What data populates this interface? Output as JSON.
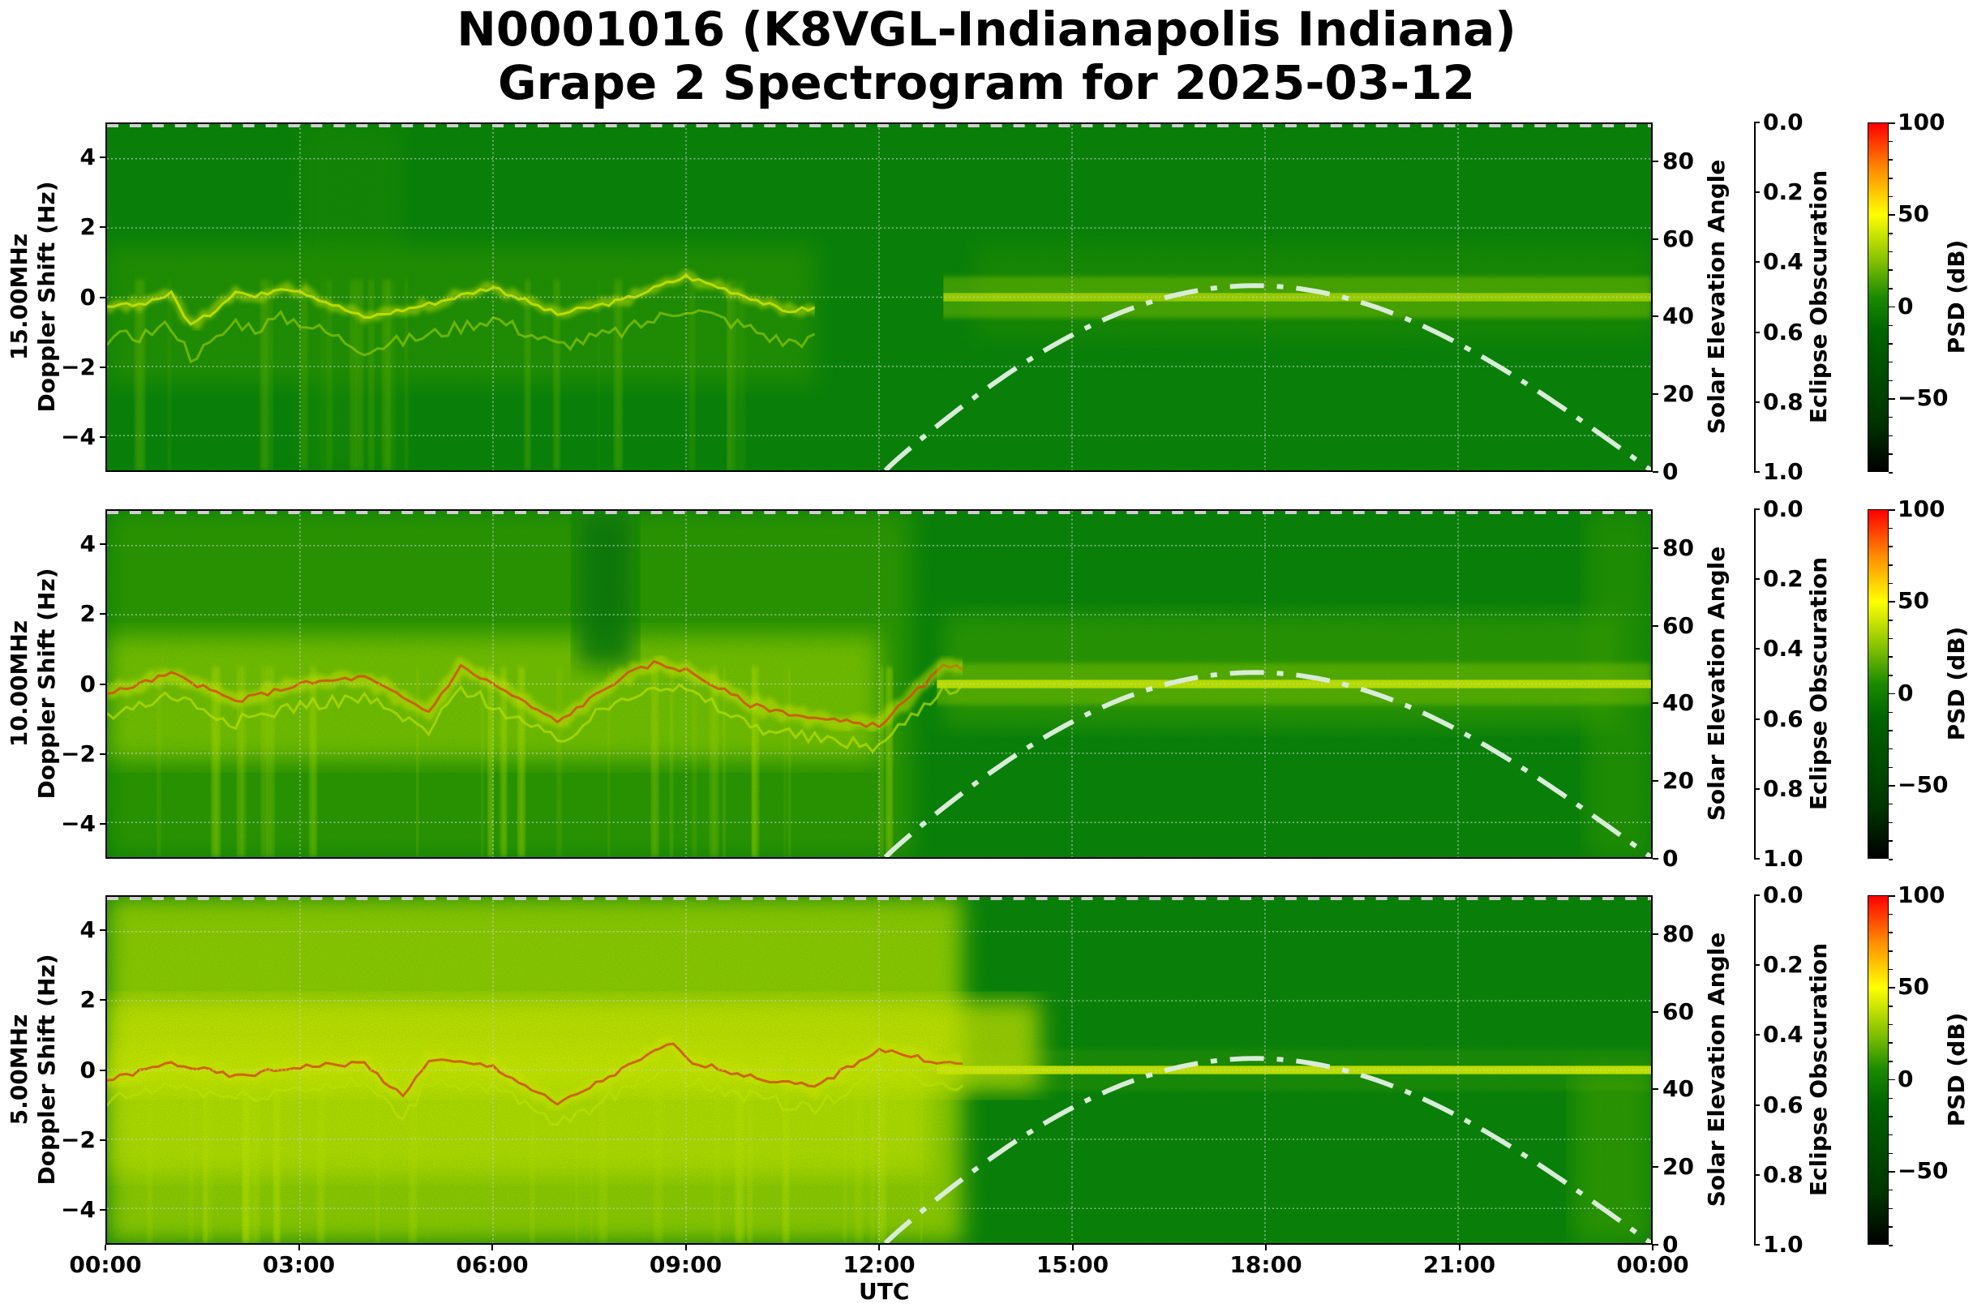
{
  "title": {
    "line1": "N0001016 (K8VGL-Indianapolis Indiana)",
    "line2": "Grape 2 Spectrogram for 2025-03-12"
  },
  "axes": {
    "x_label": "UTC",
    "x_ticks": [
      "00:00",
      "03:00",
      "06:00",
      "09:00",
      "12:00",
      "15:00",
      "18:00",
      "21:00",
      "00:00"
    ],
    "doppler_ticks": [
      "4",
      "2",
      "0",
      "−2",
      "−4"
    ],
    "solar_ticks": [
      "80",
      "60",
      "40",
      "20",
      "0"
    ],
    "solar_label": "Solar Elevation Angle",
    "eclipse_ticks": [
      "0.0",
      "0.2",
      "0.4",
      "0.6",
      "0.8",
      "1.0"
    ],
    "eclipse_label": "Eclipse Obscuration",
    "cbar_ticks": [
      "100",
      "50",
      "0",
      "−50"
    ],
    "cbar_label": "PSD (dB)"
  },
  "panels": [
    {
      "freq_label": "15.00MHz",
      "ylabel": "Doppler Shift (Hz)"
    },
    {
      "freq_label": "10.00MHz",
      "ylabel": "Doppler Shift (Hz)"
    },
    {
      "freq_label": "5.00MHz",
      "ylabel": "Doppler Shift (Hz)"
    }
  ],
  "colors": {
    "background_green": "#0b7a0b",
    "signal_yellow": "#e6f000",
    "signal_red": "#ff4000",
    "solar_curve": "#d8ecd8",
    "cbar_low": "#000000",
    "cbar_mid": "#008000",
    "cbar_50": "#ffff00",
    "cbar_high": "#ff0000"
  },
  "chart_data": {
    "type": "heatmap",
    "title": "N0001016 (K8VGL-Indianapolis Indiana) Grape 2 Spectrogram for 2025-03-12",
    "xlabel": "UTC",
    "x_range_hours": [
      0,
      24
    ],
    "x_ticks": [
      "00:00",
      "03:00",
      "06:00",
      "09:00",
      "12:00",
      "15:00",
      "18:00",
      "21:00",
      "00:00"
    ],
    "grid": true,
    "colorbar": {
      "label": "PSD (dB)",
      "range": [
        -90,
        100
      ],
      "ticks": [
        100,
        50,
        0,
        -50
      ],
      "colormap": "black-green-yellow-red"
    },
    "secondary_axes": {
      "solar_elevation": {
        "label": "Solar Elevation Angle",
        "range": [
          0,
          90
        ],
        "ticks": [
          0,
          20,
          40,
          60,
          80
        ]
      },
      "eclipse_obscuration": {
        "label": "Eclipse Obscuration",
        "range": [
          1.0,
          0.0
        ],
        "ticks": [
          0.0,
          0.2,
          0.4,
          0.6,
          0.8,
          1.0
        ],
        "value": 0.0
      }
    },
    "solar_elevation_curve": {
      "style": "dash-dot, light green-white",
      "x_hours": [
        12.1,
        13,
        14,
        15,
        16,
        17,
        18,
        19,
        20,
        21,
        22,
        23,
        24
      ],
      "y_deg": [
        0,
        9,
        19,
        28,
        37,
        44,
        48,
        46,
        40,
        31,
        20,
        9,
        0
      ]
    },
    "panels": [
      {
        "name": "15.00MHz",
        "ylabel": "15.00MHz Doppler Shift (Hz)",
        "ylim": [
          -5,
          5
        ],
        "y_ticks": [
          -4,
          -2,
          0,
          2,
          4
        ],
        "doppler_trace_x_hours": [
          0,
          0.5,
          1,
          1.3,
          1.6,
          2,
          2.3,
          2.7,
          3,
          4,
          5,
          6,
          7,
          8,
          9,
          10,
          10.5,
          13,
          15,
          18,
          21,
          24
        ],
        "doppler_trace_hz": [
          -0.3,
          -0.2,
          0.1,
          -0.8,
          -0.5,
          0.2,
          0.0,
          0.3,
          0.2,
          -0.6,
          -0.2,
          0.3,
          -0.5,
          -0.1,
          0.6,
          0.0,
          -0.4,
          0.0,
          0.0,
          0.0,
          0.0,
          -0.1
        ],
        "notes": "Weak, mostly green; diffuse yellow-green spread 0–11 UTC, faint trace near 0 Hz 13–24 UTC"
      },
      {
        "name": "10.00MHz",
        "ylabel": "10.00MHz Doppler Shift (Hz)",
        "ylim": [
          -5,
          5
        ],
        "y_ticks": [
          -4,
          -2,
          0,
          2,
          4
        ],
        "doppler_trace_x_hours": [
          0,
          1,
          2,
          3,
          4,
          5,
          5.5,
          6,
          7,
          8,
          8.5,
          9,
          10,
          11,
          12,
          13,
          15,
          18,
          21,
          24
        ],
        "doppler_trace_hz": [
          -0.3,
          0.3,
          -0.5,
          0.0,
          0.2,
          -0.8,
          0.5,
          0.0,
          -1.1,
          0.2,
          0.6,
          0.4,
          -0.6,
          -1.0,
          -1.2,
          0.5,
          0.1,
          0.0,
          0.0,
          -0.1
        ],
        "notes": "Strong yellow/red traces 0–12 UTC, bright trace near 0 Hz 13–24 UTC"
      },
      {
        "name": "5.00MHz",
        "ylabel": "5.00MHz Doppler Shift (Hz)",
        "ylim": [
          -5,
          5
        ],
        "y_ticks": [
          -4,
          -2,
          0,
          2,
          4
        ],
        "doppler_trace_x_hours": [
          0,
          1,
          2,
          3,
          4,
          4.6,
          5,
          6,
          7,
          8,
          8.8,
          9,
          10,
          11,
          12,
          13,
          15,
          18,
          21,
          24
        ],
        "doppler_trace_hz": [
          -0.3,
          0.2,
          -0.2,
          0.1,
          0.2,
          -0.8,
          0.3,
          0.1,
          -1.0,
          0.0,
          0.8,
          0.3,
          -0.2,
          -0.5,
          0.6,
          0.2,
          0.0,
          0.0,
          0.0,
          0.0
        ],
        "notes": "Broad yellow high-PSD region 0–13.5 UTC with orange/red traces; green with thin trace at 0 Hz afterward"
      }
    ]
  }
}
